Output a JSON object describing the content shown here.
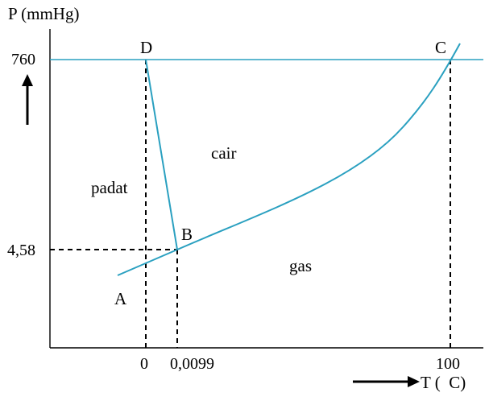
{
  "axes": {
    "y_label": "P (mmHg)",
    "x_label": "T (  C)",
    "y_ticks": [
      "760",
      "4,58"
    ],
    "x_ticks": [
      "0",
      "0,0099",
      "100"
    ]
  },
  "points": {
    "A": "A",
    "B": "B",
    "C": "C",
    "D": "D"
  },
  "regions": {
    "solid": "padat",
    "liquid": "cair",
    "gas": "gas"
  },
  "colors": {
    "curve": "#2aa0c0",
    "axis": "#000000",
    "dashed": "#000000"
  }
}
